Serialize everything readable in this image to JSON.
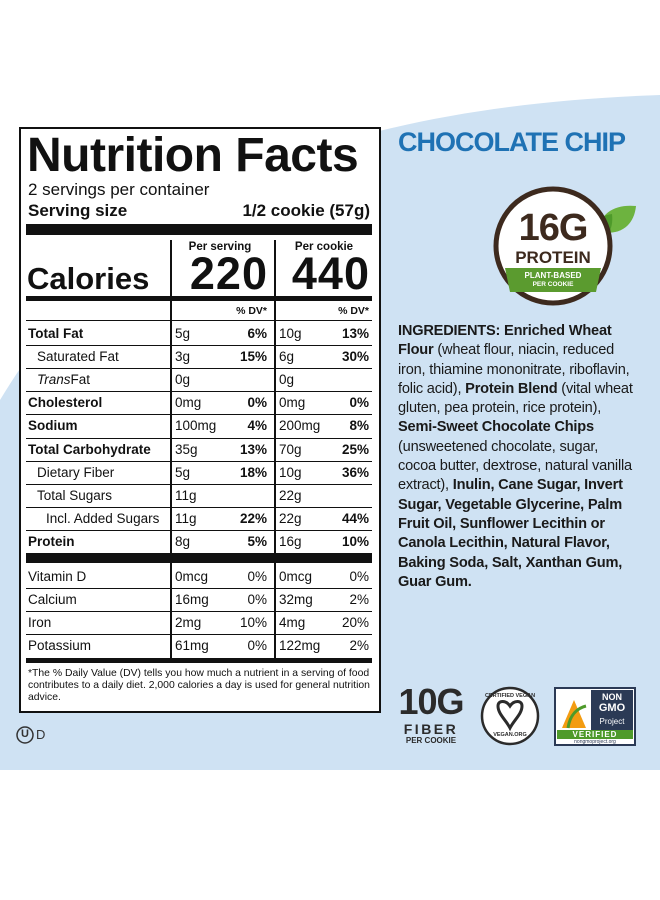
{
  "flavor": "CHOCOLATE CHIP",
  "nutrition_facts": {
    "title": "Nutrition Facts",
    "servings_per_container": "2 servings per container",
    "serving_size_label": "Serving size",
    "serving_size": "1/2 cookie (57g)",
    "per_serving": "Per serving",
    "per_cookie": "Per cookie",
    "calories_label": "Calories",
    "calories_serving": "220",
    "calories_cookie": "440",
    "dv_header": "% DV*",
    "nutrients": [
      {
        "name": "Total Fat",
        "bold": true,
        "indent": 0,
        "serving": "5g",
        "serving_dv": "6%",
        "cookie": "10g",
        "cookie_dv": "13%"
      },
      {
        "name": "Saturated Fat",
        "bold": false,
        "indent": 1,
        "serving": "3g",
        "serving_dv": "15%",
        "cookie": "6g",
        "cookie_dv": "30%"
      },
      {
        "name_italic": "Trans",
        "name": " Fat",
        "bold": false,
        "indent": 1,
        "serving": "0g",
        "cookie": "0g"
      },
      {
        "name": "Cholesterol",
        "bold": true,
        "indent": 0,
        "serving": "0mg",
        "serving_dv": "0%",
        "cookie": "0mg",
        "cookie_dv": "0%"
      },
      {
        "name": "Sodium",
        "bold": true,
        "indent": 0,
        "serving": "100mg",
        "serving_dv": "4%",
        "cookie": "200mg",
        "cookie_dv": "8%"
      },
      {
        "name": "Total Carbohydrate",
        "bold": true,
        "indent": 0,
        "serving": "35g",
        "serving_dv": "13%",
        "cookie": "70g",
        "cookie_dv": "25%"
      },
      {
        "name": "Dietary Fiber",
        "bold": false,
        "indent": 1,
        "serving": "5g",
        "serving_dv": "18%",
        "cookie": "10g",
        "cookie_dv": "36%"
      },
      {
        "name": "Total Sugars",
        "bold": false,
        "indent": 1,
        "serving": "11g",
        "cookie": "22g"
      },
      {
        "name": "Incl. Added Sugars",
        "bold": false,
        "indent": 2,
        "serving": "11g",
        "serving_dv": "22%",
        "cookie": "22g",
        "cookie_dv": "44%"
      },
      {
        "name": "Protein",
        "bold": true,
        "indent": 0,
        "serving": "8g",
        "serving_dv": "5%",
        "cookie": "16g",
        "cookie_dv": "10%"
      }
    ],
    "vitamins": [
      {
        "name": "Vitamin D",
        "serving": "0mcg",
        "serving_dv": "0%",
        "cookie": "0mcg",
        "cookie_dv": "0%"
      },
      {
        "name": "Calcium",
        "serving": "16mg",
        "serving_dv": "0%",
        "cookie": "32mg",
        "cookie_dv": "2%"
      },
      {
        "name": "Iron",
        "serving": "2mg",
        "serving_dv": "10%",
        "cookie": "4mg",
        "cookie_dv": "20%"
      },
      {
        "name": "Potassium",
        "serving": "61mg",
        "serving_dv": "0%",
        "cookie": "122mg",
        "cookie_dv": "2%"
      }
    ],
    "footnote": "*The % Daily Value (DV) tells you how much a nutrient in a serving of food contributes to a daily diet. 2,000 calories a day is used for general nutrition advice."
  },
  "protein_badge": {
    "amount": "16G",
    "label": "PROTEIN",
    "line1": "PLANT-BASED",
    "line2": "PER COOKIE"
  },
  "ingredients": [
    {
      "text": "INGREDIENTS: Enriched Wheat Flour",
      "bold": true
    },
    {
      "text": " (wheat flour, niacin, reduced iron, thiamine mononitrate, riboflavin, folic acid), ",
      "bold": false
    },
    {
      "text": "Protein Blend",
      "bold": true
    },
    {
      "text": " (vital wheat gluten, pea protein, rice protein), ",
      "bold": false
    },
    {
      "text": "Semi-Sweet Chocolate Chips",
      "bold": true
    },
    {
      "text": " (unsweetened chocolate, sugar, cocoa butter, dextrose, natural vanilla extract), ",
      "bold": false
    },
    {
      "text": "Inulin, Cane Sugar, Invert Sugar, Vegetable Glycerine, Palm Fruit Oil, Sunflower Lecithin or Canola Lecithin, Natural Flavor, Baking Soda, Salt, Xanthan Gum, Guar Gum.",
      "bold": true
    }
  ],
  "fiber_badge": {
    "amount": "10G",
    "label": "FIBER",
    "sub": "PER COOKIE"
  },
  "vegan_badge": {
    "top": "CERTIFIED VEGAN",
    "bottom": "VEGAN.ORG"
  },
  "non_gmo_badge": {
    "line1": "NON",
    "line2": "GMO",
    "line3": "Project",
    "verified": "VERIFIED",
    "url": "nongmoproject.org"
  },
  "kosher": {
    "mark": "U",
    "suffix": "D"
  }
}
